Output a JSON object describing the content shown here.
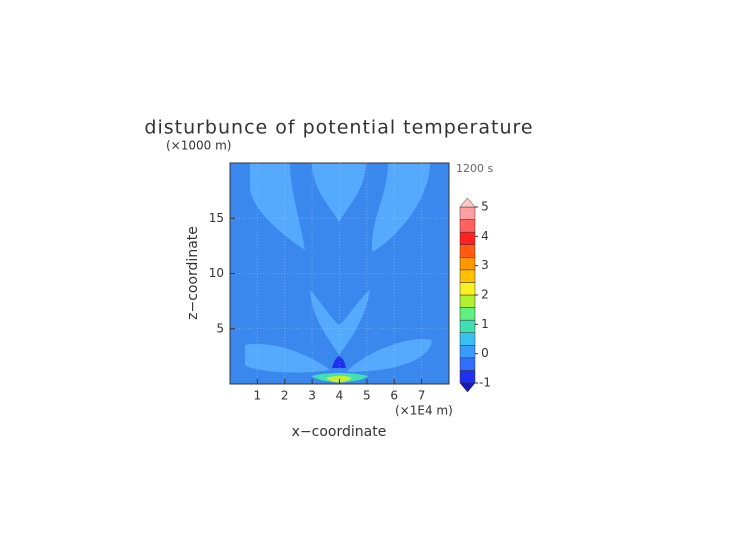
{
  "chart_data": {
    "type": "contour",
    "title": "disturbunce of potential temperature",
    "x_label": "x−coordinate",
    "y_label": "z−coordinate",
    "x_unit": "(×1E4 m)",
    "y_unit": "(×1000 m)",
    "time_label": "1200 s",
    "xlim": [
      0,
      8
    ],
    "xticks": [
      1,
      2,
      3,
      4,
      5,
      6,
      7
    ],
    "ylim": [
      0,
      20
    ],
    "yticks": [
      5,
      10,
      15
    ],
    "grid": true,
    "colorbar": {
      "clim": [
        -1,
        5
      ],
      "ticks": [
        -1,
        0,
        1,
        2,
        3,
        4,
        5
      ],
      "colors": [
        "#2030f0",
        "#3070ff",
        "#3a9cff",
        "#38c0f0",
        "#3ee0b0",
        "#60f080",
        "#b0f030",
        "#f8f020",
        "#ffc000",
        "#ff9800",
        "#ff5a10",
        "#ff2020",
        "#ff6060",
        "#ffa0a0"
      ],
      "under_color": "#1818c0",
      "over_color": "#ffc8c8"
    }
  }
}
